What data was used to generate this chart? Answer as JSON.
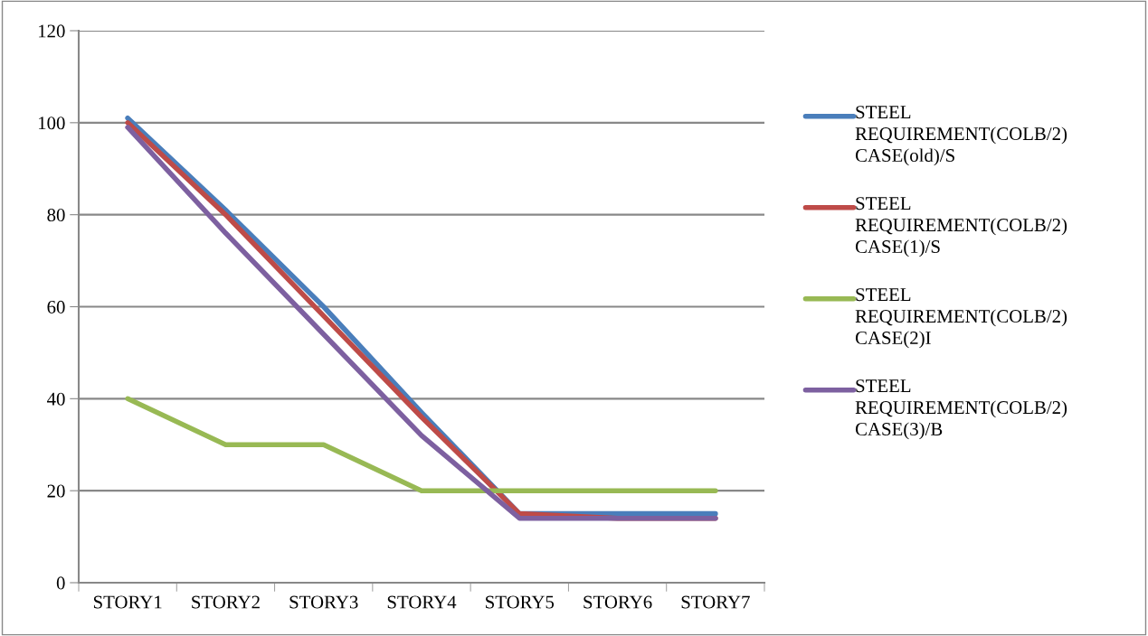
{
  "chart_data": {
    "type": "line",
    "categories": [
      "STORY1",
      "STORY2",
      "STORY3",
      "STORY4",
      "STORY5",
      "STORY6",
      "STORY7"
    ],
    "series": [
      {
        "name": "STEEL\nREQUIREMENT(COLB/2)\nCASE(old)/S",
        "color": "#4a7ebb",
        "values": [
          101,
          81,
          60,
          37,
          15,
          15,
          15
        ]
      },
      {
        "name": "STEEL\nREQUIREMENT(COLB/2)\nCASE(1)/S",
        "color": "#be4b48",
        "values": [
          100,
          80,
          58,
          36,
          15,
          14,
          14
        ]
      },
      {
        "name": "STEEL\nREQUIREMENT(COLB/2)\nCASE(2)I",
        "color": "#98b954",
        "values": [
          40,
          30,
          30,
          20,
          20,
          20,
          20
        ]
      },
      {
        "name": "STEEL\nREQUIREMENT(COLB/2)\nCASE(3)/B",
        "color": "#7d60a0",
        "values": [
          99,
          76,
          54,
          32,
          14,
          14,
          14
        ]
      }
    ],
    "ylim": [
      0,
      120
    ],
    "yticks": [
      0,
      20,
      40,
      60,
      80,
      100,
      120
    ],
    "grid": "y",
    "legend": "right",
    "marker": "none",
    "line_style": "solid"
  }
}
